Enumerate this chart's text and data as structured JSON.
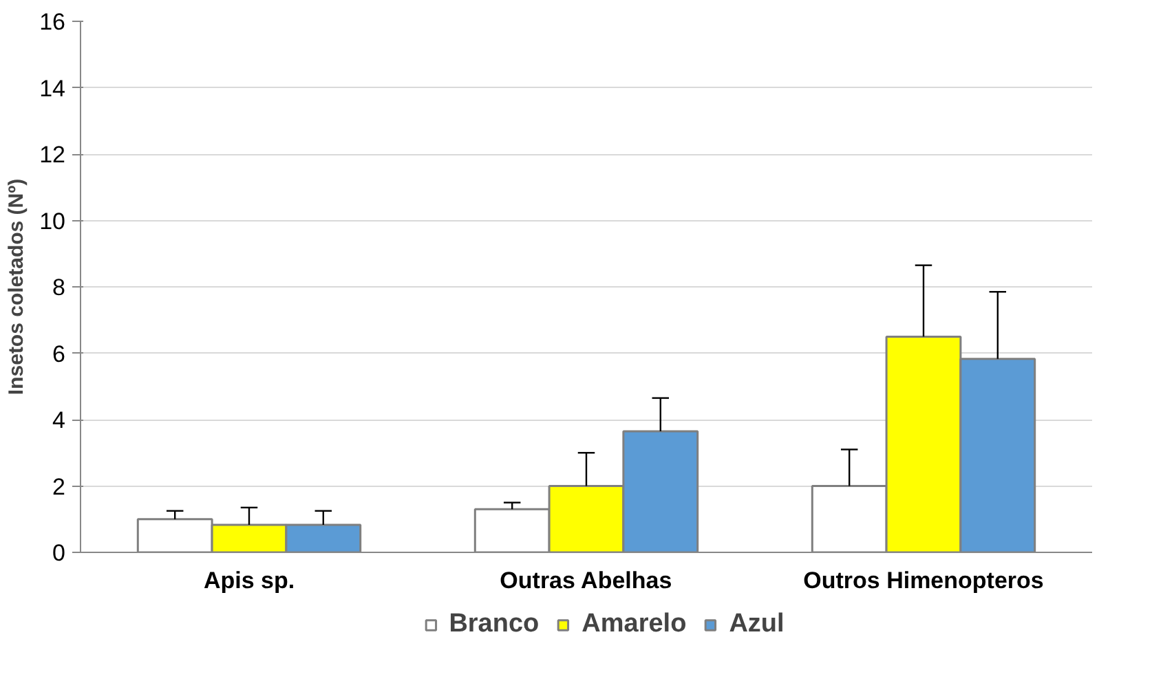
{
  "chart_data": {
    "type": "bar",
    "ylabel": "Insetos coletados (Nº)",
    "categories": [
      "Apis sp.",
      "Outras Abelhas",
      "Outros Himenopteros"
    ],
    "series": [
      {
        "name": "Branco",
        "color": "#ffffff",
        "values": [
          1.0,
          1.3,
          2.0
        ],
        "errors": [
          [
            1.0,
            1.25
          ],
          [
            1.3,
            1.5
          ],
          [
            2.0,
            3.1
          ]
        ]
      },
      {
        "name": "Amarelo",
        "color": "#ffff00",
        "values": [
          0.83,
          2.0,
          6.5
        ],
        "errors": [
          [
            0.83,
            1.35
          ],
          [
            2.0,
            3.0
          ],
          [
            6.5,
            8.65
          ]
        ]
      },
      {
        "name": "Azul",
        "color": "#5b9bd5",
        "values": [
          0.83,
          3.65,
          5.83
        ],
        "errors": [
          [
            0.83,
            1.25
          ],
          [
            3.65,
            4.65
          ],
          [
            5.83,
            7.85
          ]
        ]
      }
    ],
    "ylim": [
      0,
      16
    ],
    "yticks": [
      0,
      2,
      4,
      6,
      8,
      10,
      12,
      14,
      16
    ],
    "grid": "y",
    "legend": "bottom"
  }
}
